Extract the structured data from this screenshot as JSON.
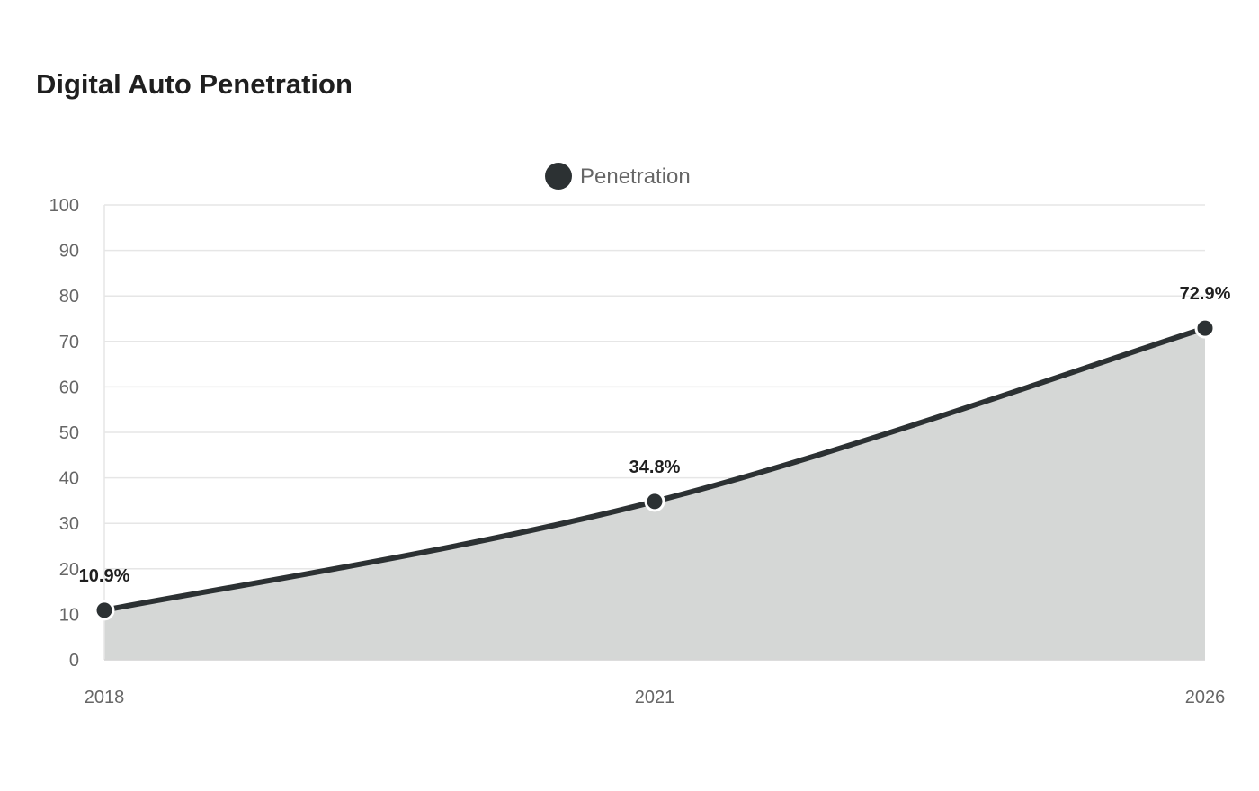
{
  "title": "Digital Auto Penetration",
  "colors": {
    "line": "#2c3133",
    "area": "#d5d7d6",
    "grid": "#e6e6e6",
    "marker_outline": "#ffffff"
  },
  "chart_data": {
    "type": "area",
    "title": "Digital Auto Penetration",
    "x": [
      "2018",
      "2021",
      "2026"
    ],
    "series": [
      {
        "name": "Penetration",
        "values": [
          10.9,
          34.8,
          72.9
        ],
        "labels": [
          "10.9%",
          "34.8%",
          "72.9%"
        ]
      }
    ],
    "yticks": [
      0,
      10,
      20,
      30,
      40,
      50,
      60,
      70,
      80,
      90,
      100
    ],
    "ylim": [
      0,
      100
    ],
    "xlabel": "",
    "ylabel": "",
    "grid": true,
    "legend": "top-center",
    "smooth": true
  }
}
